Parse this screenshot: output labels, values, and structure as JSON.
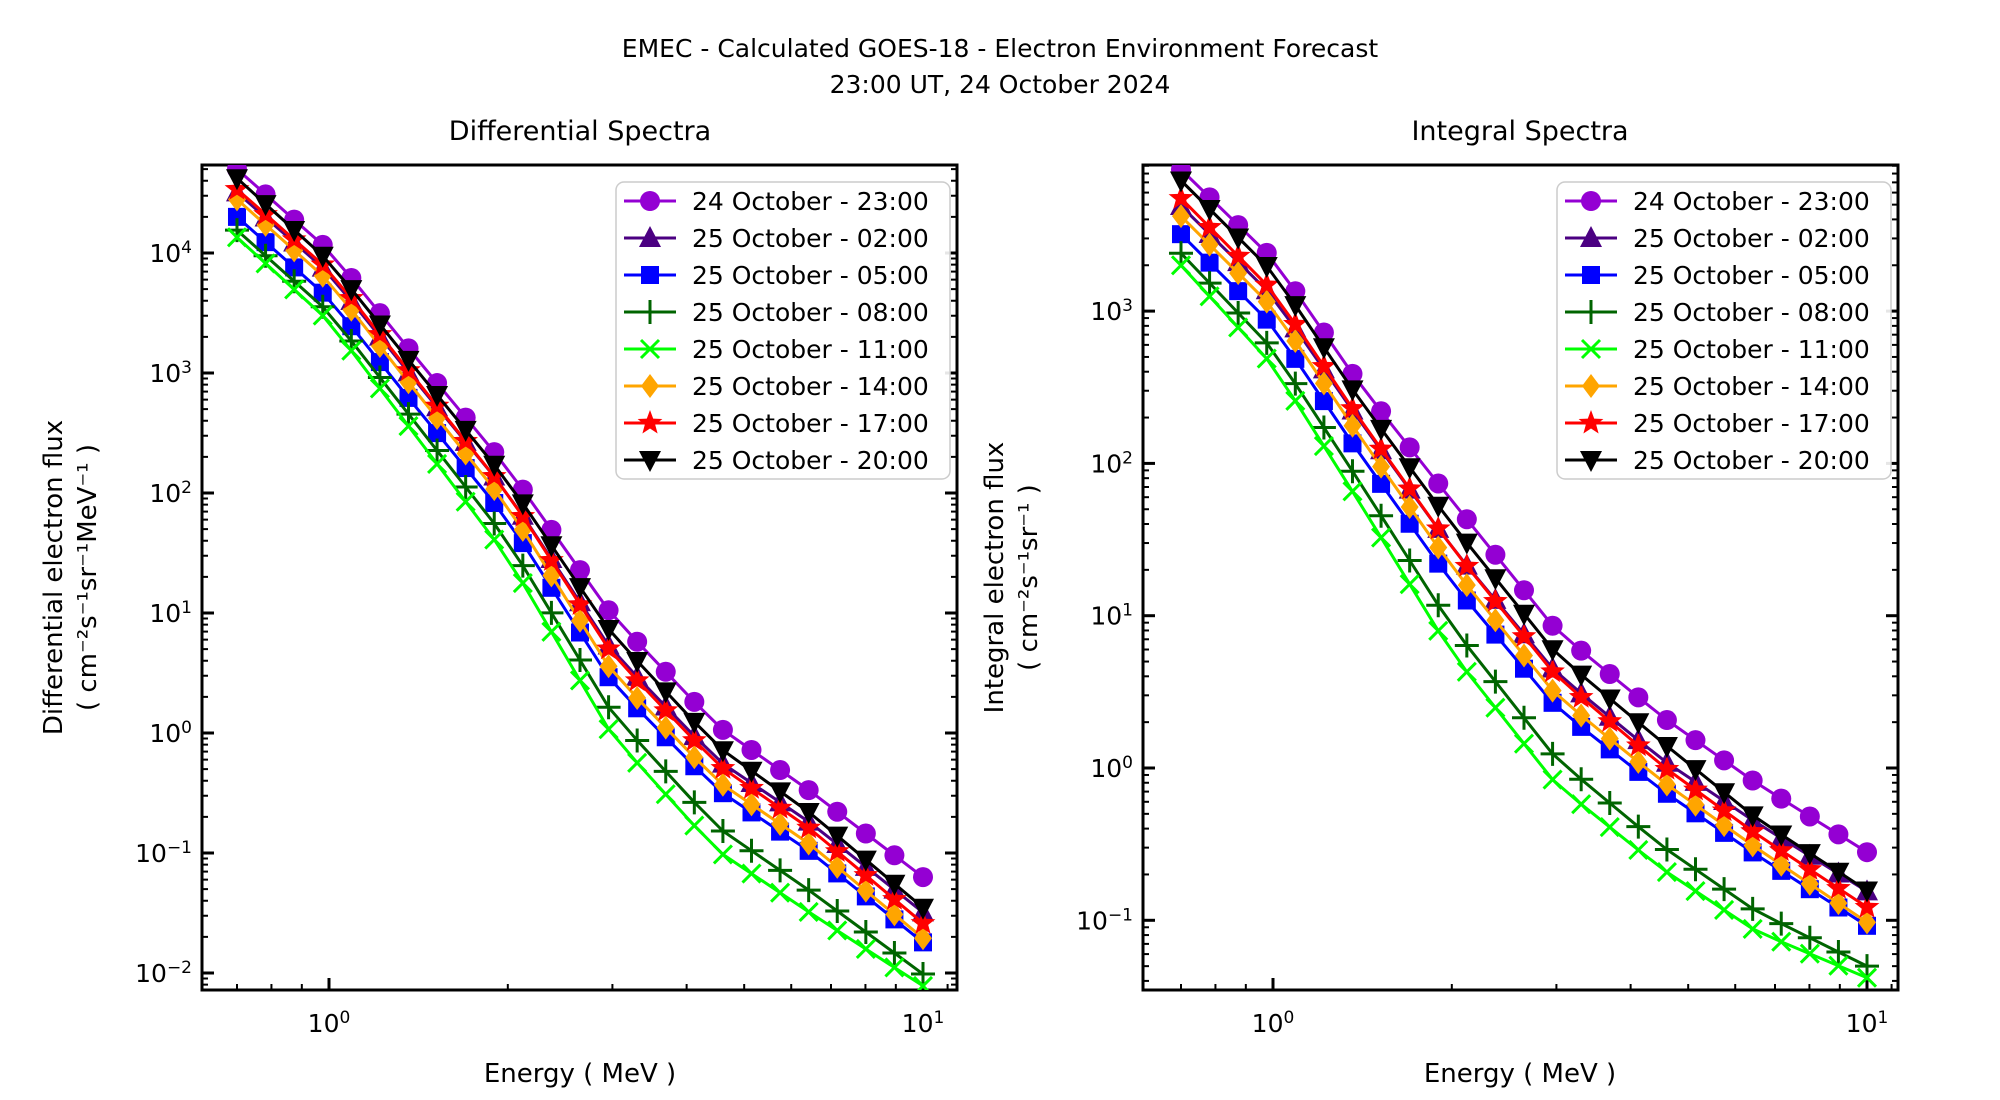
{
  "header": {
    "line1": "EMEC - Calculated GOES-18 - Electron Environment Forecast",
    "line2": "23:00 UT, 24 October 2024"
  },
  "series_meta": [
    {
      "label": "24 October - 23:00",
      "color": "#9400D3",
      "marker": "circle-icon"
    },
    {
      "label": "25 October - 02:00",
      "color": "#4B0082",
      "marker": "triangle-up-icon"
    },
    {
      "label": "25 October - 05:00",
      "color": "#0000FF",
      "marker": "square-icon"
    },
    {
      "label": "25 October - 08:00",
      "color": "#006400",
      "marker": "plus-icon"
    },
    {
      "label": "25 October - 11:00",
      "color": "#00FF00",
      "marker": "x-icon"
    },
    {
      "label": "25 October - 14:00",
      "color": "#FFA500",
      "marker": "diamond-icon"
    },
    {
      "label": "25 October - 17:00",
      "color": "#FF0000",
      "marker": "star-icon"
    },
    {
      "label": "25 October - 20:00",
      "color": "#000000",
      "marker": "triangle-down-icon"
    }
  ],
  "chart_data": [
    {
      "type": "line",
      "title": "Differential Spectra",
      "xlabel": "Energy ( MeV )",
      "ylabel_line1": "Differential electron flux",
      "ylabel_line2": "( cm⁻²s⁻¹sr⁻¹MeV⁻¹ )",
      "xscale": "log",
      "yscale": "log",
      "xlim": [
        0.61,
        11.45
      ],
      "ylim": [
        0.0072,
        54000
      ],
      "x_major_tick_exponents": [
        0,
        1
      ],
      "y_major_tick_exponents": [
        4,
        3,
        2,
        1,
        0,
        -1,
        -2
      ],
      "tick_base": "10",
      "anchor_energies": [
        0.7,
        1.0,
        1.4,
        2.0,
        3.0,
        4.5,
        6.5,
        10.0
      ],
      "n_points": 25,
      "legend_position": "upper right",
      "series": [
        {
          "name": "24 October - 23:00",
          "values": [
            50000,
            10500,
            1350,
            160,
            9.5,
            1.15,
            0.32,
            0.063
          ]
        },
        {
          "name": "25 October - 02:00",
          "values": [
            32000,
            6800,
            850,
            100,
            4.8,
            0.6,
            0.175,
            0.032
          ]
        },
        {
          "name": "25 October - 05:00",
          "values": [
            20000,
            4200,
            520,
            60,
            2.6,
            0.34,
            0.1,
            0.018
          ]
        },
        {
          "name": "25 October - 08:00",
          "values": [
            15500,
            3200,
            380,
            40,
            1.45,
            0.165,
            0.047,
            0.0098
          ]
        },
        {
          "name": "25 October - 11:00",
          "values": [
            13500,
            2700,
            300,
            29,
            0.95,
            0.105,
            0.031,
            0.0078
          ]
        },
        {
          "name": "25 October - 14:00",
          "values": [
            28000,
            5800,
            700,
            78,
            3.2,
            0.4,
            0.115,
            0.0195
          ]
        },
        {
          "name": "25 October - 17:00",
          "values": [
            34000,
            7200,
            880,
            100,
            4.5,
            0.55,
            0.155,
            0.026
          ]
        },
        {
          "name": "25 October - 20:00",
          "values": [
            42000,
            8500,
            1080,
            125,
            6.6,
            0.78,
            0.21,
            0.035
          ]
        }
      ]
    },
    {
      "type": "line",
      "title": "Integral Spectra",
      "xlabel": "Energy ( MeV )",
      "ylabel_line1": "Integral electron flux",
      "ylabel_line2": "( cm⁻²s⁻¹sr⁻¹ )",
      "xscale": "log",
      "yscale": "log",
      "xlim": [
        0.6,
        11.3
      ],
      "ylim": [
        0.035,
        9100
      ],
      "x_major_tick_exponents": [
        0,
        1
      ],
      "y_major_tick_exponents": [
        3,
        2,
        1,
        0,
        -1
      ],
      "tick_base": "10",
      "anchor_energies": [
        0.7,
        1.0,
        1.4,
        2.0,
        3.0,
        4.5,
        6.5,
        10.0
      ],
      "n_points": 25,
      "legend_position": "upper right",
      "series": [
        {
          "name": "24 October - 23:00",
          "values": [
            8500,
            2200,
            330,
            57,
            8.0,
            2.2,
            0.8,
            0.28
          ]
        },
        {
          "name": "25 October - 02:00",
          "values": [
            4900,
            1250,
            190,
            28,
            4.2,
            1.15,
            0.44,
            0.155
          ]
        },
        {
          "name": "25 October - 05:00",
          "values": [
            3200,
            800,
            115,
            16.5,
            2.5,
            0.72,
            0.27,
            0.092
          ]
        },
        {
          "name": "25 October - 08:00",
          "values": [
            2400,
            560,
            75,
            8.5,
            1.15,
            0.31,
            0.115,
            0.05
          ]
        },
        {
          "name": "25 October - 11:00",
          "values": [
            2000,
            440,
            55,
            5.7,
            0.78,
            0.22,
            0.085,
            0.042
          ]
        },
        {
          "name": "25 October - 14:00",
          "values": [
            4200,
            1050,
            150,
            21,
            3.0,
            0.83,
            0.3,
            0.097
          ]
        },
        {
          "name": "25 October - 17:00",
          "values": [
            5500,
            1350,
            195,
            28,
            4.0,
            1.05,
            0.37,
            0.122
          ]
        },
        {
          "name": "25 October - 20:00",
          "values": [
            7200,
            1800,
            260,
            40,
            5.6,
            1.5,
            0.47,
            0.157
          ]
        }
      ]
    }
  ]
}
